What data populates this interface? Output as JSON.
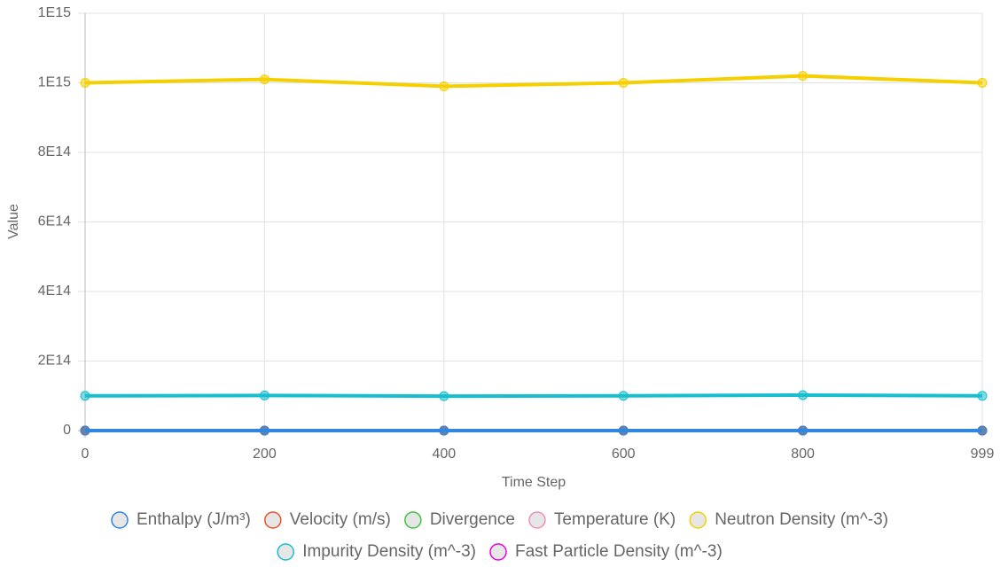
{
  "chart_data": {
    "type": "line",
    "x_label": "Time Step",
    "y_label": "Value",
    "categories": [
      "0",
      "200",
      "400",
      "600",
      "800",
      "999"
    ],
    "ylim": [
      0,
      1200000000000000
    ],
    "yticks": [
      0,
      {
        "value": 200000000000000,
        "label": "2E14"
      },
      {
        "value": 400000000000000,
        "label": "4E14"
      },
      {
        "value": 600000000000000,
        "label": "6E14"
      },
      {
        "value": 800000000000000,
        "label": "8E14"
      },
      {
        "value": 1000000000000000,
        "label": "1E15"
      },
      {
        "value": 1200000000000000,
        "label": "1E15"
      }
    ],
    "grid": true,
    "series": [
      {
        "name": "Enthalpy (J/m³)",
        "color": "#2f86e0",
        "values": [
          0,
          0,
          0,
          0,
          0,
          0
        ]
      },
      {
        "name": "Velocity (m/s)",
        "color": "#e8532a",
        "values": [
          0,
          0,
          0,
          0,
          0,
          0
        ]
      },
      {
        "name": "Divergence",
        "color": "#3cc43c",
        "values": [
          0,
          0,
          0,
          0,
          0,
          0
        ]
      },
      {
        "name": "Temperature (K)",
        "color": "#f28cbc",
        "values": [
          0,
          0,
          0,
          0,
          0,
          0
        ]
      },
      {
        "name": "Neutron Density (m^-3)",
        "color": "#f5d000",
        "values": [
          1000000000000000,
          1010000000000000,
          990000000000000,
          1000000000000000,
          1020000000000000,
          1000000000000000
        ]
      },
      {
        "name": "Impurity Density (m^-3)",
        "color": "#17becf",
        "values": [
          100000000000000,
          101000000000000,
          99000000000000,
          100000000000000,
          102000000000000,
          100000000000000
        ]
      },
      {
        "name": "Fast Particle Density (m^-3)",
        "color": "#e600e6",
        "values": [
          0,
          0,
          0,
          0,
          0,
          0
        ]
      }
    ]
  }
}
